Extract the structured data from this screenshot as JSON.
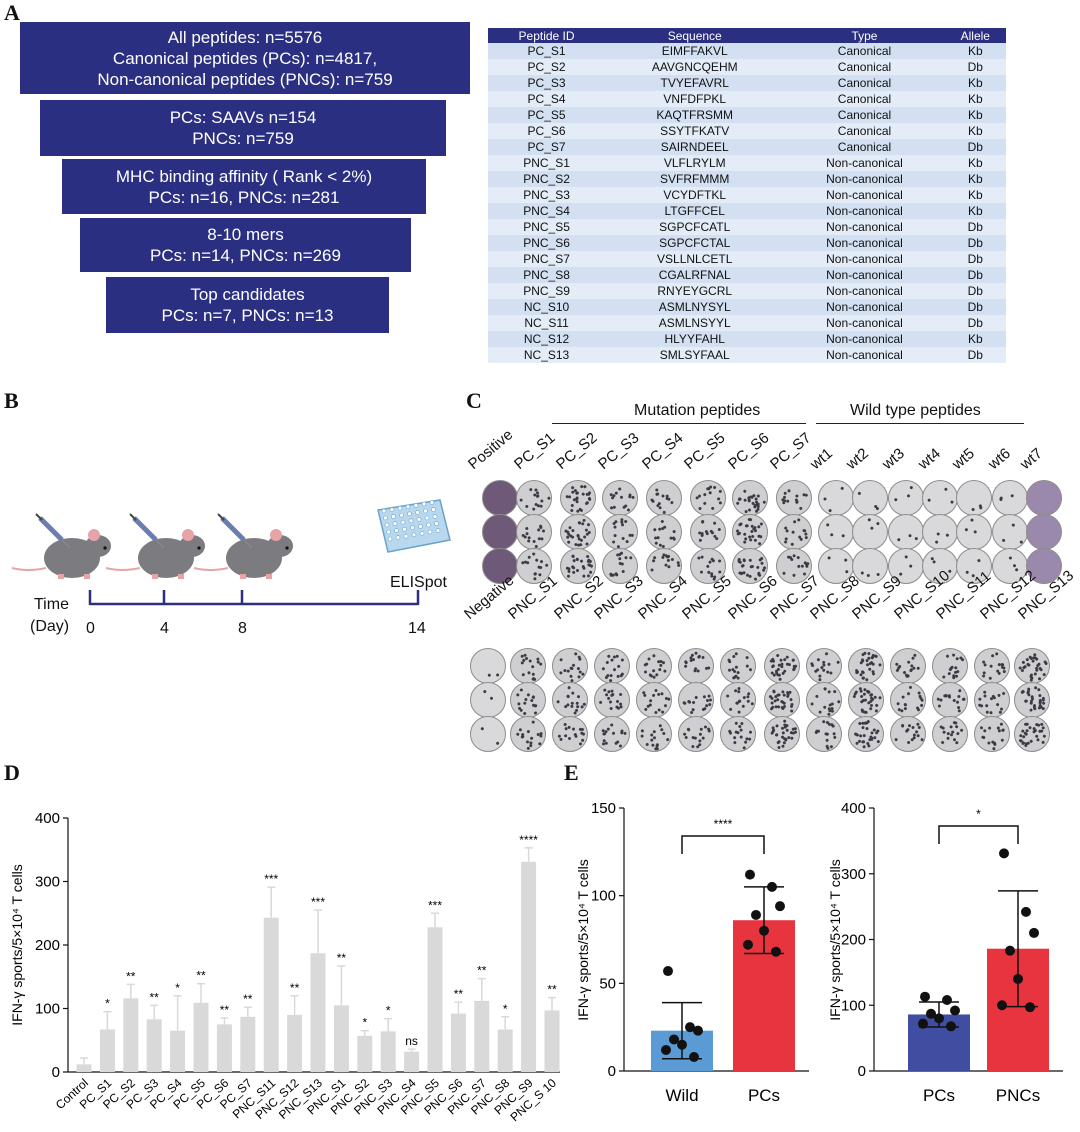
{
  "panels": {
    "a": "A",
    "b": "B",
    "c": "C",
    "d": "D",
    "e": "E"
  },
  "funnel": [
    {
      "lines": [
        "All peptides: n=5576",
        "Canonical peptides (PCs): n=4817,",
        "Non-canonical peptides (PNCs): n=759"
      ]
    },
    {
      "lines": [
        "PCs: SAAVs n=154",
        "PNCs: n=759"
      ]
    },
    {
      "lines": [
        "MHC binding affinity ( Rank < 2%)",
        "PCs: n=16, PNCs: n=281"
      ]
    },
    {
      "lines": [
        "8-10 mers",
        "PCs: n=14, PNCs: n=269"
      ]
    },
    {
      "lines": [
        "Top candidates",
        "PCs: n=7, PNCs: n=13"
      ]
    }
  ],
  "peptide_table": {
    "headers": [
      "Peptide ID",
      "Sequence",
      "Type",
      "Allele"
    ],
    "rows": [
      [
        "PC_S1",
        "EIMFFAKVL",
        "Canonical",
        "Kb"
      ],
      [
        "PC_S2",
        "AAVGNCQEHM",
        "Canonical",
        "Db"
      ],
      [
        "PC_S3",
        "TVYEFAVRL",
        "Canonical",
        "Kb"
      ],
      [
        "PC_S4",
        "VNFDFPKL",
        "Canonical",
        "Kb"
      ],
      [
        "PC_S5",
        "KAQTFRSMM",
        "Canonical",
        "Kb"
      ],
      [
        "PC_S6",
        "SSYTFKATV",
        "Canonical",
        "Kb"
      ],
      [
        "PC_S7",
        "SAIRNDEEL",
        "Canonical",
        "Db"
      ],
      [
        "PNC_S1",
        "VLFLRYLM",
        "Non-canonical",
        "Kb"
      ],
      [
        "PNC_S2",
        "SVFRFMMM",
        "Non-canonical",
        "Kb"
      ],
      [
        "PNC_S3",
        "VCYDFTKL",
        "Non-canonical",
        "Kb"
      ],
      [
        "PNC_S4",
        "LTGFFCEL",
        "Non-canonical",
        "Kb"
      ],
      [
        "PNC_S5",
        "SGPCFCATL",
        "Non-canonical",
        "Db"
      ],
      [
        "PNC_S6",
        "SGPCFCTAL",
        "Non-canonical",
        "Db"
      ],
      [
        "PNC_S7",
        "VSLLNLCETL",
        "Non-canonical",
        "Db"
      ],
      [
        "PNC_S8",
        "CGALRFNAL",
        "Non-canonical",
        "Db"
      ],
      [
        "PNC_S9",
        "RNYEYGCRL",
        "Non-canonical",
        "Db"
      ],
      [
        "NC_S10",
        "ASMLNYSYL",
        "Non-canonical",
        "Db"
      ],
      [
        "NC_S11",
        "ASMLNSYYL",
        "Non-canonical",
        "Db"
      ],
      [
        "NC_S12",
        "HLYYFAHL",
        "Non-canonical",
        "Kb"
      ],
      [
        "NC_S13",
        "SMLSYFAAL",
        "Non-canonical",
        "Db"
      ]
    ]
  },
  "timeline": {
    "time_label": "Time",
    "day_label": "(Day)",
    "ticks": [
      "0",
      "4",
      "8",
      "14"
    ],
    "assay_label": "ELISpot"
  },
  "elispot": {
    "mutation_header": "Mutation peptides",
    "wildtype_header": "Wild type peptides",
    "top_labels": [
      "Positive",
      "PC_S1",
      "PC_S2",
      "PC_S3",
      "PC_S4",
      "PC_S5",
      "PC_S6",
      "PC_S7",
      "wt1",
      "wt2",
      "wt3",
      "wt4",
      "wt5",
      "wt6",
      "wt7"
    ],
    "bottom_labels": [
      "Negative",
      "PNC_S1",
      "PNC_S2",
      "PNC_S3",
      "PNC_S4",
      "PNC_S5",
      "PNC_S6",
      "PNC_S7",
      "PNC_S8",
      "PNC_S9",
      "PNC_S10",
      "PNC_S11",
      "PNC_S12",
      "PNC_S13"
    ],
    "colors": {
      "positive": "#6e5a78",
      "wt7": "#9a89ad",
      "dense": "#9a9aa0",
      "light": "#cfcfd2",
      "plain": "#d9d9db"
    }
  },
  "chart_data": [
    {
      "type": "bar",
      "panel": "D",
      "ylabel": "IFN-γ sports/5×10⁴ T cells",
      "ylim": [
        0,
        400
      ],
      "yticks": [
        0,
        100,
        200,
        300,
        400
      ],
      "categories": [
        "Control",
        "PC_S1",
        "PC_S2",
        "PC_S3",
        "PC_S4",
        "PC_S5",
        "PC_S6",
        "PC_S7",
        "PNC_S11",
        "PNC_S12",
        "PNC_S13",
        "PNC_S1",
        "PNC_S2",
        "PNC_S3",
        "PNC_S4",
        "PNC_S5",
        "PNC_S6",
        "PNC_S7",
        "PNC_S8",
        "PNC_S9",
        "PNC_S 10"
      ],
      "values": [
        12,
        67,
        116,
        83,
        65,
        109,
        75,
        87,
        243,
        90,
        187,
        105,
        57,
        64,
        32,
        228,
        92,
        112,
        67,
        331,
        97
      ],
      "errors": [
        10,
        28,
        22,
        22,
        55,
        30,
        10,
        15,
        48,
        30,
        68,
        62,
        8,
        20,
        4,
        22,
        18,
        35,
        20,
        22,
        20
      ],
      "significance": [
        "",
        "*",
        "**",
        "**",
        "*",
        "**",
        "**",
        "**",
        "***",
        "**",
        "***",
        "**",
        "*",
        "*",
        "ns",
        "***",
        "**",
        "**",
        "*",
        "****",
        "**"
      ],
      "bar_color": "#d9d9d9"
    },
    {
      "type": "bar",
      "panel": "E-left",
      "ylabel": "IFN-γ sports/5×10⁴ T cells",
      "ylim": [
        0,
        150
      ],
      "yticks": [
        0,
        50,
        100,
        150
      ],
      "categories": [
        "Wild",
        "PCs"
      ],
      "values": [
        23,
        86
      ],
      "errors": [
        16,
        19
      ],
      "points": [
        [
          57,
          25,
          23,
          18,
          15,
          12,
          8
        ],
        [
          112,
          105,
          94,
          89,
          80,
          72,
          68
        ]
      ],
      "significance": "****",
      "colors": [
        "#5b9bd5",
        "#e8343f"
      ]
    },
    {
      "type": "bar",
      "panel": "E-right",
      "ylabel": "IFN-γ sports/5×10⁴ T cells",
      "ylim": [
        0,
        400
      ],
      "yticks": [
        0,
        100,
        200,
        300,
        400
      ],
      "categories": [
        "PCs",
        "PNCs"
      ],
      "values": [
        86,
        186
      ],
      "errors": [
        19,
        88
      ],
      "points": [
        [
          113,
          108,
          92,
          87,
          80,
          72,
          68
        ],
        [
          331,
          242,
          210,
          183,
          140,
          100,
          97
        ]
      ],
      "significance": "*",
      "colors": [
        "#3f4ea1",
        "#e8343f"
      ]
    }
  ]
}
